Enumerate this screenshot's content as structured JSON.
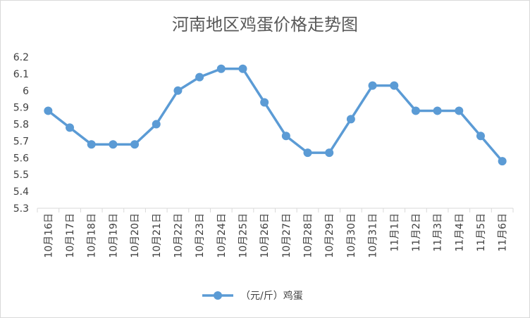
{
  "chart_data": {
    "type": "line",
    "title": "河南地区鸡蛋价格走势图",
    "categories": [
      "10月16日",
      "10月17日",
      "10月18日",
      "10月19日",
      "10月20日",
      "10月21日",
      "10月22日",
      "10月23日",
      "10月24日",
      "10月25日",
      "10月26日",
      "10月27日",
      "10月28日",
      "10月29日",
      "10月30日",
      "10月31日",
      "11月1日",
      "11月2日",
      "11月3日",
      "11月4日",
      "11月5日",
      "11月6日"
    ],
    "series": [
      {
        "name": "（元/斤）鸡蛋",
        "values": [
          5.88,
          5.78,
          5.68,
          5.68,
          5.68,
          5.8,
          6.0,
          6.08,
          6.13,
          6.13,
          5.93,
          5.73,
          5.63,
          5.63,
          5.83,
          6.03,
          6.03,
          5.88,
          5.88,
          5.88,
          5.73,
          5.58
        ]
      }
    ],
    "yticks": [
      "5.3",
      "5.4",
      "5.5",
      "5.6",
      "5.7",
      "5.8",
      "5.9",
      "6",
      "6.1",
      "6.2"
    ],
    "ylim": [
      5.3,
      6.2
    ],
    "xlabel": "",
    "ylabel": "",
    "legend_position": "bottom",
    "grid": false,
    "colors": {
      "series": "#5B9BD5",
      "axis": "#d9d9d9",
      "text": "#404040",
      "title": "#595959"
    }
  }
}
